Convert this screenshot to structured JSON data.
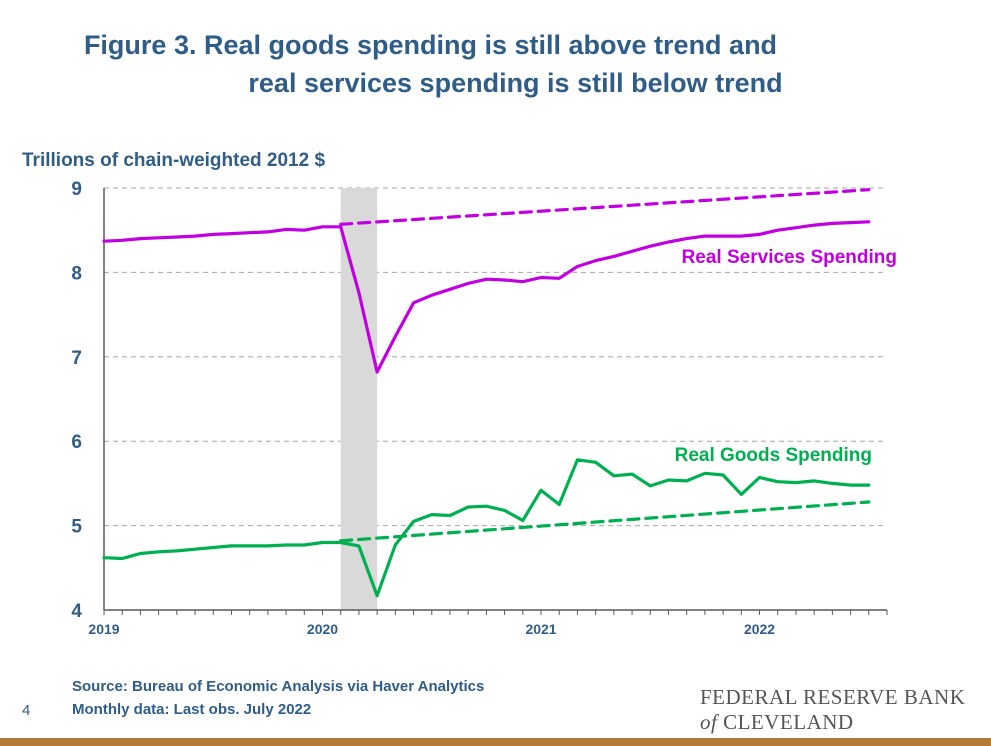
{
  "page": {
    "title_line1": "Figure 3. Real goods spending is still above trend and",
    "title_line2": "real services spending is still below trend",
    "source_line1": "Source: Bureau of Economic Analysis via Haver Analytics",
    "source_line2": "Monthly data: Last obs. July 2022",
    "page_number": "4",
    "logo_line1": "FEDERAL RESERVE BANK",
    "logo_of": "of",
    "logo_line2": "CLEVELAND",
    "bottom_bar_color": "#b5793a"
  },
  "chart_data": {
    "type": "line",
    "ylabel": "Trillions of chain-weighted 2012 $",
    "ylim": [
      4,
      9
    ],
    "yticks": [
      4,
      5,
      6,
      7,
      8,
      9
    ],
    "xlim": [
      "2019-01",
      "2022-08"
    ],
    "xticks": [
      {
        "label": "2019",
        "date": "2019-01"
      },
      {
        "label": "2020",
        "date": "2020-01"
      },
      {
        "label": "2021",
        "date": "2021-01"
      },
      {
        "label": "2022",
        "date": "2022-01"
      }
    ],
    "grid": "horizontal dashed",
    "recession_shading": {
      "start": "2020-02",
      "end": "2020-04",
      "color": "#d9d9d9"
    },
    "series": [
      {
        "name": "Real Services Spending",
        "color": "#c000e0",
        "style": "solid",
        "label_position": "right",
        "x": [
          "2019-01",
          "2019-02",
          "2019-03",
          "2019-04",
          "2019-05",
          "2019-06",
          "2019-07",
          "2019-08",
          "2019-09",
          "2019-10",
          "2019-11",
          "2019-12",
          "2020-01",
          "2020-02",
          "2020-03",
          "2020-04",
          "2020-05",
          "2020-06",
          "2020-07",
          "2020-08",
          "2020-09",
          "2020-10",
          "2020-11",
          "2020-12",
          "2021-01",
          "2021-02",
          "2021-03",
          "2021-04",
          "2021-05",
          "2021-06",
          "2021-07",
          "2021-08",
          "2021-09",
          "2021-10",
          "2021-11",
          "2021-12",
          "2022-01",
          "2022-02",
          "2022-03",
          "2022-04",
          "2022-05",
          "2022-06",
          "2022-07"
        ],
        "values": [
          8.37,
          8.38,
          8.4,
          8.41,
          8.42,
          8.43,
          8.45,
          8.46,
          8.47,
          8.48,
          8.51,
          8.5,
          8.54,
          8.54,
          7.76,
          6.82,
          7.24,
          7.64,
          7.73,
          7.8,
          7.87,
          7.92,
          7.91,
          7.89,
          7.94,
          7.93,
          8.07,
          8.14,
          8.19,
          8.25,
          8.31,
          8.36,
          8.4,
          8.43,
          8.43,
          8.43,
          8.45,
          8.5,
          8.53,
          8.56,
          8.58,
          8.59,
          8.6
        ]
      },
      {
        "name": "",
        "color": "#c000e0",
        "style": "dashed",
        "x": [
          "2020-02",
          "2022-07"
        ],
        "values": [
          8.57,
          8.98
        ]
      },
      {
        "name": "Real Goods Spending",
        "color": "#00b050",
        "style": "solid",
        "label_position": "right",
        "x": [
          "2019-01",
          "2019-02",
          "2019-03",
          "2019-04",
          "2019-05",
          "2019-06",
          "2019-07",
          "2019-08",
          "2019-09",
          "2019-10",
          "2019-11",
          "2019-12",
          "2020-01",
          "2020-02",
          "2020-03",
          "2020-04",
          "2020-05",
          "2020-06",
          "2020-07",
          "2020-08",
          "2020-09",
          "2020-10",
          "2020-11",
          "2020-12",
          "2021-01",
          "2021-02",
          "2021-03",
          "2021-04",
          "2021-05",
          "2021-06",
          "2021-07",
          "2021-08",
          "2021-09",
          "2021-10",
          "2021-11",
          "2021-12",
          "2022-01",
          "2022-02",
          "2022-03",
          "2022-04",
          "2022-05",
          "2022-06",
          "2022-07"
        ],
        "values": [
          4.62,
          4.61,
          4.67,
          4.69,
          4.7,
          4.72,
          4.74,
          4.76,
          4.76,
          4.76,
          4.77,
          4.77,
          4.8,
          4.8,
          4.76,
          4.17,
          4.77,
          5.05,
          5.13,
          5.12,
          5.22,
          5.23,
          5.18,
          5.06,
          5.42,
          5.25,
          5.78,
          5.75,
          5.59,
          5.61,
          5.47,
          5.54,
          5.53,
          5.62,
          5.6,
          5.37,
          5.57,
          5.52,
          5.51,
          5.53,
          5.5,
          5.48,
          5.48
        ]
      },
      {
        "name": "",
        "color": "#00b050",
        "style": "dashed",
        "x": [
          "2020-02",
          "2022-07"
        ],
        "values": [
          4.82,
          5.28
        ]
      }
    ]
  }
}
